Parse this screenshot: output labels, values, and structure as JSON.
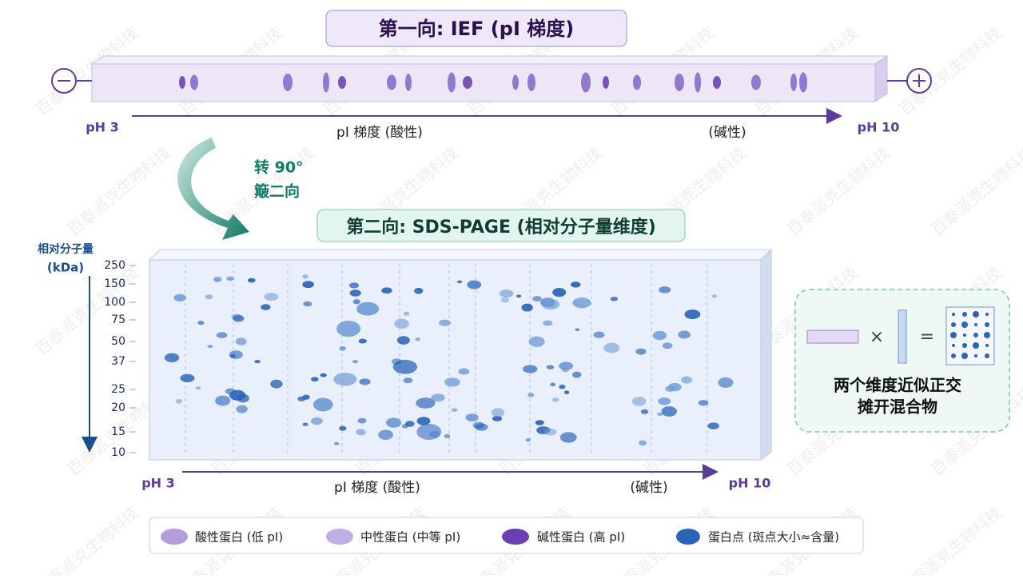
{
  "ief": {
    "title": "第一向: IEF (pI 梯度)",
    "ph_low": "pH 3",
    "gradient_label": "pI 梯度 (酸性)",
    "basic_label": "(碱性)",
    "ph_high": "pH 10"
  },
  "rotate": {
    "line1": "转 90°",
    "line2": "簸二向"
  },
  "sds": {
    "title": "第二向: SDS-PAGE (相对分子量维度)",
    "axis_title": "相对分子量",
    "axis_unit": "(kDa)",
    "ticks": [
      "250",
      "150",
      "100",
      "75",
      "50",
      "37",
      "25",
      "20",
      "15",
      "10"
    ],
    "ph_low": "pH 3",
    "gradient_label": "pI 梯度 (酸性)",
    "basic_label": "(碱性)",
    "ph_high": "pH 10"
  },
  "inset": {
    "times": "×",
    "equals": "=",
    "line1": "两个维度近似正交",
    "line2": "摊开混合物"
  },
  "legend": {
    "items": [
      "酸性蛋白 (低 pI)",
      "中性蛋白 (中等 pI)",
      "碱性蛋白 (高 pI)",
      "蛋白点 (斑点大小≈含量)"
    ]
  },
  "watermark": "百泰派克生物科技"
}
